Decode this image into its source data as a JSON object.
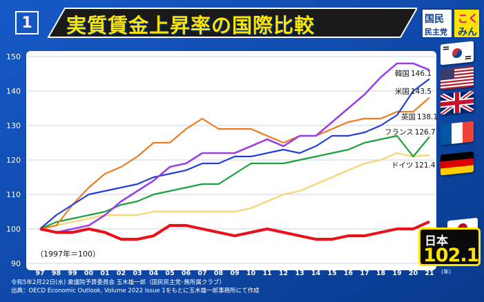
{
  "header": {
    "panel_number": "1",
    "title": "実質賃金上昇率の国際比較",
    "logo_line1": "国民",
    "logo_line2": "民主党",
    "logo_line3": "こく",
    "logo_line4": "みん"
  },
  "footer": {
    "line1": "令和5年2月22日(水) 衆議院予算委員会 玉木雄一郎（国民民主党･無所属クラブ）",
    "line2": "出典：OECD Economic Outlook, Volume 2022 Issue 1をもとに玉木雄一郎事務所にて作成"
  },
  "japan_badge": {
    "label": "日本",
    "value": "102.1"
  },
  "flags": [
    "korea-flag",
    "usa-flag",
    "uk-flag",
    "france-flag",
    "germany-flag",
    "japan-flag"
  ],
  "chart_data": {
    "type": "line",
    "x": [
      "97",
      "98",
      "99",
      "00",
      "01",
      "02",
      "03",
      "04",
      "05",
      "06",
      "07",
      "08",
      "09",
      "10",
      "11",
      "12",
      "13",
      "14",
      "15",
      "16",
      "17",
      "18",
      "19",
      "20",
      "21"
    ],
    "x_unit": "（年）",
    "ylim": [
      90,
      150
    ],
    "yticks": [
      90,
      100,
      110,
      120,
      130,
      140,
      150
    ],
    "grid": true,
    "note": "（1997年＝100）",
    "series": [
      {
        "name": "韓国",
        "end_label": "146.1",
        "color": "#9b3fe8",
        "values": [
          100,
          99,
          100,
          101,
          104,
          108,
          111,
          114,
          118,
          119,
          122,
          122,
          122,
          124,
          126,
          124,
          127,
          127,
          131,
          135,
          139,
          144,
          148,
          148,
          146.1
        ]
      },
      {
        "name": "米国",
        "end_label": "143.5",
        "color": "#1f3fd6",
        "values": [
          100,
          104,
          107,
          110,
          111,
          112,
          113,
          115,
          116,
          117,
          119,
          119,
          121,
          121,
          122,
          123,
          122,
          124,
          127,
          127,
          128,
          130,
          133,
          140,
          143.5
        ]
      },
      {
        "name": "英国",
        "end_label": "138.1",
        "color": "#f07a1e",
        "values": [
          100,
          101,
          107,
          112,
          116,
          118,
          121,
          125,
          125,
          129,
          132,
          129,
          129,
          129,
          127,
          125,
          127,
          127,
          129,
          131,
          132,
          132,
          134,
          134,
          138.1
        ]
      },
      {
        "name": "フランス",
        "end_label": "126.7",
        "color": "#17a23a",
        "values": [
          100,
          102,
          103,
          104,
          105,
          107,
          108,
          110,
          111,
          112,
          113,
          113,
          116,
          119,
          119,
          119,
          120,
          121,
          122,
          123,
          125,
          126,
          127,
          121,
          126.7
        ]
      },
      {
        "name": "ドイツ",
        "end_label": "121.4",
        "color": "#f7d67a",
        "values": [
          100,
          101,
          102,
          103,
          104,
          104,
          104,
          105,
          105,
          105,
          105,
          105,
          105,
          106,
          108,
          110,
          111,
          113,
          115,
          117,
          119,
          120,
          122,
          121,
          121.4
        ]
      },
      {
        "name": "日本",
        "end_label": "102.1",
        "color": "#e8121b",
        "values": [
          100,
          99,
          99,
          100,
          99,
          97,
          97,
          98,
          101,
          101,
          100,
          99,
          98,
          99,
          100,
          99,
          98,
          97,
          97,
          98,
          98,
          99,
          100,
          100,
          102.1
        ]
      }
    ]
  }
}
